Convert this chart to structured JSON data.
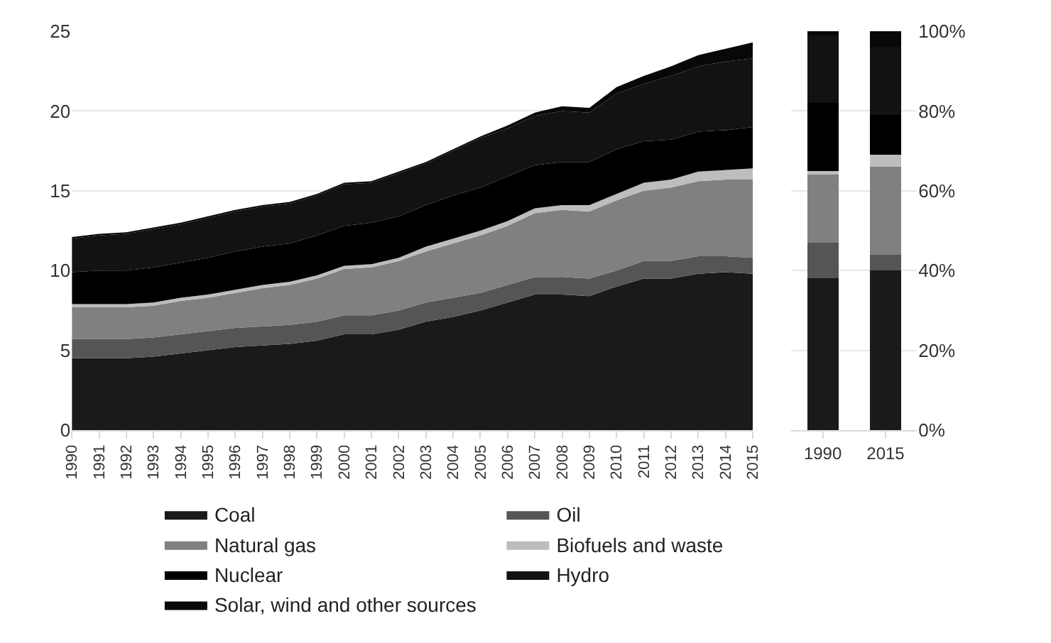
{
  "chart_data": [
    {
      "type": "area",
      "stacked": true,
      "x": [
        1990,
        1991,
        1992,
        1993,
        1994,
        1995,
        1996,
        1997,
        1998,
        1999,
        2000,
        2001,
        2002,
        2003,
        2004,
        2005,
        2006,
        2007,
        2008,
        2009,
        2010,
        2011,
        2012,
        2013,
        2014,
        2015
      ],
      "xlim": [
        1990,
        2015
      ],
      "xticks": [
        1990,
        1991,
        1992,
        1993,
        1994,
        1995,
        1996,
        1997,
        1998,
        1999,
        2000,
        2001,
        2002,
        2003,
        2004,
        2005,
        2006,
        2007,
        2008,
        2009,
        2010,
        2011,
        2012,
        2013,
        2014,
        2015
      ],
      "ylim": [
        0,
        25
      ],
      "yticks": [
        0,
        5,
        10,
        15,
        20,
        25
      ],
      "grid": "y",
      "legend": "bottom",
      "series": [
        {
          "name": "Coal",
          "color": "#1a1a1a",
          "values": [
            4.5,
            4.5,
            4.5,
            4.6,
            4.8,
            5.0,
            5.2,
            5.3,
            5.4,
            5.6,
            6.0,
            6.0,
            6.3,
            6.8,
            7.1,
            7.5,
            8.0,
            8.5,
            8.5,
            8.4,
            9.0,
            9.5,
            9.5,
            9.8,
            9.9,
            9.8
          ]
        },
        {
          "name": "Oil",
          "color": "#555555",
          "values": [
            1.2,
            1.2,
            1.2,
            1.2,
            1.2,
            1.2,
            1.2,
            1.2,
            1.2,
            1.2,
            1.2,
            1.2,
            1.2,
            1.2,
            1.2,
            1.1,
            1.1,
            1.1,
            1.1,
            1.1,
            1.0,
            1.1,
            1.1,
            1.1,
            1.0,
            1.0
          ]
        },
        {
          "name": "Natural gas",
          "color": "#808080",
          "values": [
            2.0,
            2.0,
            2.0,
            2.0,
            2.1,
            2.1,
            2.2,
            2.4,
            2.5,
            2.7,
            2.9,
            3.0,
            3.1,
            3.2,
            3.4,
            3.6,
            3.7,
            4.0,
            4.2,
            4.2,
            4.4,
            4.4,
            4.6,
            4.7,
            4.8,
            4.9
          ]
        },
        {
          "name": "Biofuels and waste",
          "color": "#bdbdbd",
          "values": [
            0.2,
            0.2,
            0.2,
            0.2,
            0.2,
            0.2,
            0.2,
            0.2,
            0.2,
            0.2,
            0.2,
            0.2,
            0.2,
            0.3,
            0.3,
            0.3,
            0.3,
            0.3,
            0.3,
            0.4,
            0.4,
            0.5,
            0.5,
            0.6,
            0.6,
            0.7
          ]
        },
        {
          "name": "Nuclear",
          "color": "#000000",
          "values": [
            2.0,
            2.1,
            2.1,
            2.2,
            2.2,
            2.3,
            2.4,
            2.4,
            2.4,
            2.5,
            2.5,
            2.6,
            2.6,
            2.6,
            2.7,
            2.7,
            2.8,
            2.7,
            2.7,
            2.7,
            2.8,
            2.6,
            2.5,
            2.5,
            2.5,
            2.6
          ]
        },
        {
          "name": "Hydro",
          "color": "#121212",
          "values": [
            2.1,
            2.2,
            2.3,
            2.4,
            2.4,
            2.5,
            2.5,
            2.5,
            2.5,
            2.5,
            2.6,
            2.5,
            2.7,
            2.6,
            2.8,
            3.1,
            3.0,
            3.1,
            3.2,
            3.1,
            3.5,
            3.6,
            4.0,
            4.1,
            4.3,
            4.3
          ]
        },
        {
          "name": "Solar, wind and other sources",
          "color": "#080808",
          "values": [
            0.1,
            0.1,
            0.1,
            0.1,
            0.1,
            0.1,
            0.1,
            0.1,
            0.1,
            0.1,
            0.1,
            0.1,
            0.1,
            0.1,
            0.1,
            0.1,
            0.2,
            0.2,
            0.3,
            0.3,
            0.4,
            0.5,
            0.6,
            0.7,
            0.8,
            1.0
          ]
        }
      ]
    },
    {
      "type": "bar",
      "stacked": true,
      "categories": [
        "1990",
        "2015"
      ],
      "ylim": [
        0,
        100
      ],
      "yticks": [
        {
          "value": 0,
          "label": "0%"
        },
        {
          "value": 20,
          "label": "20%"
        },
        {
          "value": 40,
          "label": "40%"
        },
        {
          "value": 60,
          "label": "60%"
        },
        {
          "value": 80,
          "label": "80%"
        },
        {
          "value": 100,
          "label": "100%"
        }
      ],
      "grid": "y",
      "series": [
        {
          "color": "#1a1a1a",
          "values": [
            38,
            40
          ]
        },
        {
          "color": "#555555",
          "values": [
            9,
            4
          ]
        },
        {
          "color": "#808080",
          "values": [
            17,
            22
          ]
        },
        {
          "color": "#bdbdbd",
          "values": [
            1,
            3
          ]
        },
        {
          "color": "#000000",
          "values": [
            17,
            10
          ]
        },
        {
          "color": "#121212",
          "values": [
            17,
            17
          ]
        },
        {
          "color": "#080808",
          "values": [
            1,
            4
          ]
        }
      ]
    }
  ]
}
